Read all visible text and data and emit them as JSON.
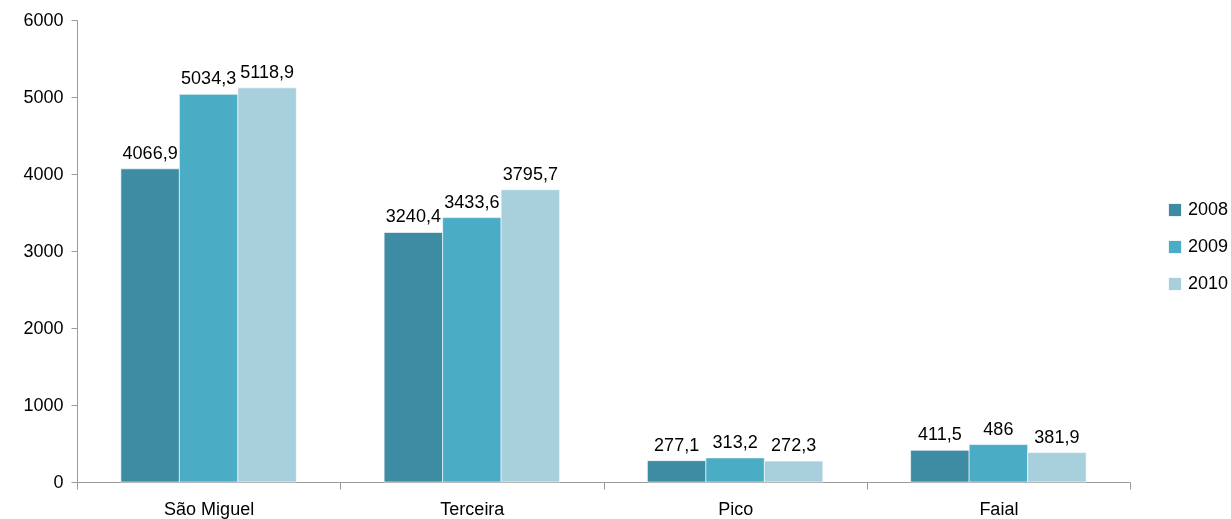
{
  "chart_data": {
    "type": "bar",
    "categories": [
      "São Miguel",
      "Terceira",
      "Pico",
      "Faial"
    ],
    "series": [
      {
        "name": "2008",
        "color": "#3d8ca4",
        "values": [
          4066.9,
          3240.4,
          277.1,
          411.5
        ],
        "value_labels": [
          "4066,9",
          "3240,4",
          "277,1",
          "411,5"
        ]
      },
      {
        "name": "2009",
        "color": "#4bacc6",
        "values": [
          5034.3,
          3433.6,
          313.2,
          486
        ],
        "value_labels": [
          "5034,3",
          "3433,6",
          "313,2",
          "486"
        ]
      },
      {
        "name": "2010",
        "color": "#a8cfdc",
        "values": [
          5118.9,
          3795.7,
          272.3,
          381.9
        ],
        "value_labels": [
          "5118,9",
          "3795,7",
          "272,3",
          "381,9"
        ]
      }
    ],
    "ylim": [
      0,
      6000
    ],
    "yticks": [
      0,
      1000,
      2000,
      3000,
      4000,
      5000,
      6000
    ],
    "legend": "right"
  }
}
